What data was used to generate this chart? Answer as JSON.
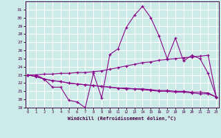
{
  "x": [
    0,
    1,
    2,
    3,
    4,
    5,
    6,
    7,
    8,
    9,
    10,
    11,
    12,
    13,
    14,
    15,
    16,
    17,
    18,
    19,
    20,
    21,
    22,
    23
  ],
  "series": [
    [
      23.0,
      23.0,
      22.5,
      21.5,
      21.5,
      19.9,
      19.7,
      19.0,
      23.2,
      20.2,
      25.5,
      26.2,
      28.8,
      30.3,
      31.4,
      30.0,
      27.8,
      25.0,
      27.5,
      24.7,
      25.4,
      25.0,
      23.2,
      20.3
    ],
    [
      23.0,
      23.0,
      23.1,
      23.1,
      23.2,
      23.2,
      23.3,
      23.3,
      23.4,
      23.5,
      23.7,
      23.9,
      24.1,
      24.3,
      24.5,
      24.6,
      24.8,
      24.9,
      25.0,
      25.1,
      25.2,
      25.3,
      25.4,
      20.3
    ],
    [
      23.0,
      22.8,
      22.5,
      22.3,
      22.2,
      22.0,
      21.9,
      21.8,
      21.7,
      21.6,
      21.5,
      21.4,
      21.4,
      21.3,
      21.3,
      21.2,
      21.1,
      21.1,
      21.0,
      21.0,
      20.9,
      20.9,
      20.8,
      20.3
    ],
    [
      23.0,
      22.8,
      22.5,
      22.3,
      22.2,
      22.0,
      21.9,
      21.8,
      21.7,
      21.6,
      21.5,
      21.4,
      21.3,
      21.3,
      21.2,
      21.1,
      21.0,
      21.0,
      20.9,
      20.9,
      20.8,
      20.7,
      20.7,
      20.3
    ]
  ],
  "line_color": "#880088",
  "bg_color": "#cceae7",
  "grid_color": "#aadddd",
  "xlabel": "Windchill (Refroidissement éolien,°C)",
  "ylim": [
    19,
    32
  ],
  "yticks": [
    19,
    20,
    21,
    22,
    23,
    24,
    25,
    26,
    27,
    28,
    29,
    30,
    31
  ],
  "xticks": [
    0,
    1,
    2,
    3,
    4,
    5,
    6,
    7,
    8,
    9,
    10,
    11,
    12,
    13,
    14,
    15,
    16,
    17,
    18,
    19,
    20,
    21,
    22,
    23
  ],
  "figsize": [
    3.2,
    2.0
  ],
  "dpi": 100
}
